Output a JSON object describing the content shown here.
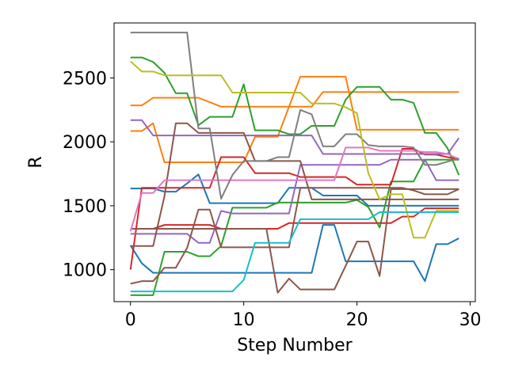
{
  "chart_data": {
    "type": "line",
    "title": "",
    "xlabel": "Step Number",
    "ylabel": "R",
    "xlim": [
      -1.45,
      30.45
    ],
    "ylim": [
      750,
      2930
    ],
    "xticks": [
      0,
      10,
      20,
      30
    ],
    "yticks": [
      1000,
      1500,
      2000,
      2500
    ],
    "grid": false,
    "x": [
      0,
      1,
      2,
      3,
      4,
      5,
      6,
      7,
      8,
      9,
      10,
      11,
      12,
      13,
      14,
      15,
      16,
      17,
      18,
      19,
      20,
      21,
      22,
      23,
      24,
      25,
      26,
      27,
      28,
      29
    ],
    "series": [
      {
        "color": "#1f77b4",
        "values": [
          1190,
          1050,
          975,
          975,
          975,
          975,
          975,
          975,
          975,
          975,
          975,
          975,
          975,
          975,
          975,
          975,
          975,
          1350,
          1350,
          1065,
          1065,
          1065,
          1065,
          1065,
          1065,
          1065,
          910,
          1200,
          1200,
          1245
        ]
      },
      {
        "color": "#1f77b4",
        "values": [
          1635,
          1635,
          1635,
          1610,
          1610,
          1675,
          1745,
          1520,
          1520,
          1520,
          1520,
          1520,
          1520,
          1520,
          1640,
          1640,
          1640,
          1580,
          1580,
          1580,
          1580,
          1500,
          1500,
          1500,
          1500,
          1500,
          1500,
          1500,
          1500,
          1500
        ]
      },
      {
        "color": "#ff7f0e",
        "values": [
          2285,
          2285,
          2345,
          2345,
          2345,
          2345,
          2345,
          2310,
          2275,
          2275,
          2275,
          2275,
          2275,
          2275,
          2275,
          2510,
          2510,
          2510,
          2510,
          2510,
          2095,
          2095,
          2095,
          2095,
          2095,
          2095,
          2095,
          2095,
          2095,
          2095
        ]
      },
      {
        "color": "#ff7f0e",
        "values": [
          2085,
          2085,
          2145,
          1840,
          1840,
          1840,
          1840,
          1840,
          1840,
          1840,
          1840,
          2040,
          2040,
          2040,
          2275,
          2275,
          2275,
          2390,
          2390,
          2390,
          2390,
          2390,
          2390,
          2390,
          2390,
          2390,
          2390,
          2390,
          2390,
          2390
        ]
      },
      {
        "color": "#2ca02c",
        "values": [
          2660,
          2660,
          2625,
          2540,
          2380,
          2380,
          2130,
          2195,
          2195,
          2195,
          2450,
          2090,
          2090,
          2090,
          2060,
          2060,
          2125,
          2125,
          2125,
          2330,
          2430,
          2430,
          2430,
          2330,
          2330,
          2305,
          2070,
          2070,
          1950,
          1740
        ]
      },
      {
        "color": "#2ca02c",
        "values": [
          800,
          800,
          800,
          1140,
          1140,
          1140,
          1105,
          1105,
          1185,
          1485,
          1485,
          1485,
          1485,
          1525,
          1525,
          1525,
          1525,
          1525,
          1525,
          1525,
          1545,
          1490,
          1330,
          1690,
          1690,
          1690,
          1860,
          1860,
          1860,
          1860
        ]
      },
      {
        "color": "#d62728",
        "values": [
          1000,
          1640,
          1640,
          1640,
          1640,
          1640,
          1640,
          1640,
          1880,
          1880,
          1880,
          1755,
          1755,
          1755,
          1755,
          1725,
          1725,
          1725,
          1725,
          1725,
          1665,
          1665,
          1665,
          1665,
          1945,
          1945,
          1900,
          1900,
          1880,
          1865
        ]
      },
      {
        "color": "#d62728",
        "values": [
          1320,
          1320,
          1320,
          1350,
          1350,
          1350,
          1350,
          1350,
          1320,
          1320,
          1320,
          1320,
          1320,
          1320,
          1365,
          1365,
          1365,
          1365,
          1365,
          1365,
          1365,
          1365,
          1365,
          1365,
          1415,
          1415,
          1480,
          1480,
          1480,
          1480
        ]
      },
      {
        "color": "#9467bd",
        "values": [
          2170,
          2170,
          2050,
          2050,
          2050,
          2050,
          2050,
          2050,
          2050,
          2050,
          2050,
          2050,
          2050,
          2050,
          2050,
          2050,
          2050,
          1905,
          1905,
          1905,
          1905,
          1905,
          1905,
          1905,
          1905,
          1905,
          1905,
          1905,
          1905,
          2030
        ]
      },
      {
        "color": "#9467bd",
        "values": [
          1280,
          1280,
          1280,
          1280,
          1280,
          1280,
          1210,
          1210,
          1460,
          1440,
          1440,
          1440,
          1440,
          1440,
          1440,
          1820,
          1820,
          1820,
          1820,
          1820,
          1820,
          1820,
          1820,
          1860,
          1860,
          1860,
          1860,
          1700,
          1700,
          1700
        ]
      },
      {
        "color": "#8c564b",
        "values": [
          890,
          910,
          910,
          1015,
          1015,
          1170,
          1470,
          1470,
          1175,
          1175,
          1175,
          1175,
          1175,
          1175,
          1175,
          1640,
          1640,
          1640,
          1640,
          1640,
          1640,
          1640,
          1640,
          1640,
          1640,
          1620,
          1590,
          1590,
          1590,
          1630
        ]
      },
      {
        "color": "#8c564b",
        "values": [
          1185,
          1185,
          1185,
          1575,
          2145,
          2145,
          2070,
          2070,
          2070,
          2070,
          2070,
          1850,
          1850,
          1850,
          1850,
          1850,
          1550,
          1550,
          1550,
          1550,
          1550,
          1550,
          1550,
          1550,
          1550,
          1550,
          1550,
          1550,
          1550,
          1550
        ]
      },
      {
        "color": "#8c564b",
        "values": [
          1320,
          1320,
          1320,
          1320,
          1320,
          1320,
          1320,
          1320,
          1320,
          1320,
          1320,
          1320,
          1320,
          820,
          930,
          845,
          845,
          845,
          845,
          1030,
          1220,
          1220,
          950,
          1630,
          1630,
          1630,
          1630,
          1630,
          1630,
          1630
        ]
      },
      {
        "color": "#e377c2",
        "values": [
          1300,
          1600,
          1600,
          1700,
          1700,
          1700,
          1700,
          1700,
          1700,
          1700,
          1700,
          1700,
          1700,
          1700,
          1700,
          1700,
          1700,
          1700,
          1700,
          1955,
          1955,
          1955,
          1930,
          1930,
          1930,
          1930,
          1920,
          1920,
          1905,
          1865
        ]
      },
      {
        "color": "#7f7f7f",
        "values": [
          2855,
          2855,
          2855,
          2855,
          2855,
          2855,
          2105,
          2105,
          1555,
          1740,
          1850,
          1850,
          1850,
          1880,
          1880,
          2250,
          2215,
          1965,
          1965,
          2060,
          2060,
          1975,
          1965,
          1965,
          1965,
          1955,
          1820,
          1820,
          1845,
          1870
        ]
      },
      {
        "color": "#bcbd22",
        "values": [
          2630,
          2550,
          2550,
          2520,
          2520,
          2520,
          2520,
          2520,
          2520,
          2385,
          2385,
          2385,
          2385,
          2385,
          2385,
          2385,
          2300,
          2300,
          2300,
          2270,
          2225,
          1755,
          1550,
          1590,
          1590,
          1250,
          1250,
          1460,
          1460,
          1460
        ]
      },
      {
        "color": "#17becf",
        "values": [
          830,
          830,
          830,
          830,
          830,
          830,
          830,
          830,
          830,
          830,
          920,
          1210,
          1210,
          1210,
          1210,
          1395,
          1395,
          1395,
          1395,
          1395,
          1395,
          1395,
          1450,
          1450,
          1450,
          1450,
          1450,
          1450,
          1450,
          1450
        ]
      }
    ]
  }
}
